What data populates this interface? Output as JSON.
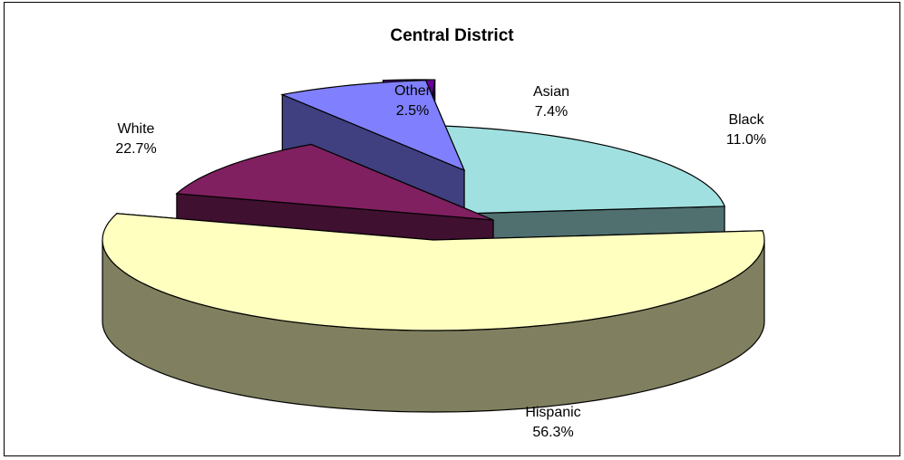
{
  "chart_data": {
    "type": "pie",
    "title": "Central District",
    "three_d": true,
    "exploded": true,
    "slices": [
      {
        "label": "Hispanic",
        "value": 56.3,
        "value_label": "56.3%",
        "top_color": "#ffffc0",
        "side_color": "#808060"
      },
      {
        "label": "White",
        "value": 22.7,
        "value_label": "22.7%",
        "top_color": "#a0e0e0",
        "side_color": "#507070"
      },
      {
        "label": "Other",
        "value": 2.5,
        "value_label": "2.5%",
        "top_color": "#660099",
        "side_color": "#33004c"
      },
      {
        "label": "Asian",
        "value": 7.4,
        "value_label": "7.4%",
        "top_color": "#8080ff",
        "side_color": "#404080"
      },
      {
        "label": "Black",
        "value": 11.0,
        "value_label": "11.0%",
        "top_color": "#802060",
        "side_color": "#401030"
      }
    ]
  }
}
